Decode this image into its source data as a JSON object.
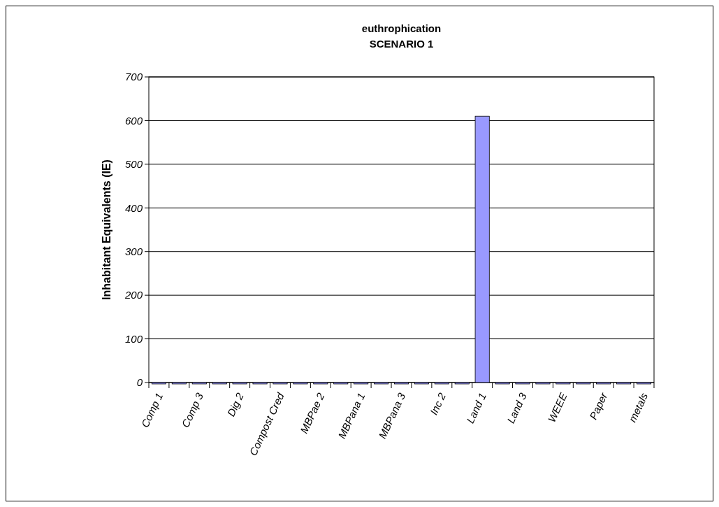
{
  "chart_data": {
    "type": "bar",
    "title": "euthrophication",
    "subtitle": "SCENARIO 1",
    "ylabel": "Inhabitant Equivalents (IE)",
    "categories": [
      "Comp 1",
      null,
      "Comp 3",
      null,
      "Dig 2",
      null,
      "Compost Cred",
      null,
      "MBPae 2",
      null,
      "MBPana 1",
      null,
      "MBPana 3",
      null,
      "Inc 2",
      null,
      "Land 1",
      null,
      "Land 3",
      null,
      "WEEE",
      null,
      "Paper",
      null,
      "metals"
    ],
    "values": [
      0,
      0,
      0,
      0,
      0,
      0,
      0,
      0,
      0,
      0,
      0,
      0,
      0,
      0,
      0,
      0,
      610,
      0,
      0,
      0,
      0,
      0,
      0,
      0,
      0
    ],
    "color": "#9999ff",
    "ylim": [
      0,
      700
    ],
    "yticks": [
      0,
      100,
      200,
      300,
      400,
      500,
      600,
      700
    ],
    "grid": "y"
  }
}
